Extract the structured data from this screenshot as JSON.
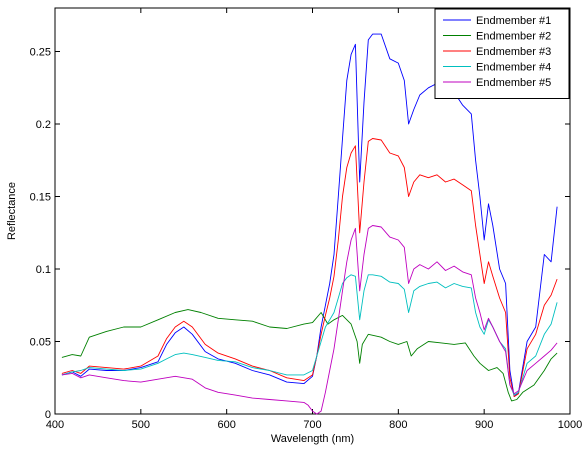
{
  "chart_data": {
    "type": "line",
    "title": "",
    "xlabel": "Wavelength (nm)",
    "ylabel": "Reflectance",
    "xlim": [
      400,
      1000
    ],
    "ylim": [
      0,
      0.28
    ],
    "xticks": [
      400,
      500,
      600,
      700,
      800,
      900,
      1000
    ],
    "xtick_labels": [
      "400",
      "500",
      "600",
      "700",
      "800",
      "900",
      "1000"
    ],
    "yticks": [
      0,
      0.05,
      0.1,
      0.15,
      0.2,
      0.25
    ],
    "ytick_labels": [
      "0",
      "0.05",
      "0.1",
      "0.15",
      "0.2",
      "0.25"
    ],
    "grid": false,
    "legend_position": "top-right",
    "series": [
      {
        "name": "Endmember #1",
        "color": "#0000ff",
        "points": [
          [
            408,
            0.027
          ],
          [
            420,
            0.029
          ],
          [
            430,
            0.026
          ],
          [
            440,
            0.031
          ],
          [
            460,
            0.03
          ],
          [
            480,
            0.03
          ],
          [
            500,
            0.032
          ],
          [
            520,
            0.036
          ],
          [
            530,
            0.048
          ],
          [
            540,
            0.056
          ],
          [
            550,
            0.06
          ],
          [
            560,
            0.055
          ],
          [
            575,
            0.043
          ],
          [
            590,
            0.038
          ],
          [
            610,
            0.035
          ],
          [
            630,
            0.03
          ],
          [
            650,
            0.027
          ],
          [
            670,
            0.022
          ],
          [
            690,
            0.021
          ],
          [
            700,
            0.026
          ],
          [
            705,
            0.04
          ],
          [
            710,
            0.06
          ],
          [
            715,
            0.075
          ],
          [
            720,
            0.09
          ],
          [
            725,
            0.11
          ],
          [
            730,
            0.15
          ],
          [
            735,
            0.19
          ],
          [
            740,
            0.23
          ],
          [
            745,
            0.248
          ],
          [
            750,
            0.255
          ],
          [
            755,
            0.16
          ],
          [
            760,
            0.215
          ],
          [
            765,
            0.258
          ],
          [
            770,
            0.262
          ],
          [
            780,
            0.262
          ],
          [
            790,
            0.245
          ],
          [
            800,
            0.242
          ],
          [
            807,
            0.23
          ],
          [
            812,
            0.2
          ],
          [
            818,
            0.21
          ],
          [
            825,
            0.22
          ],
          [
            835,
            0.225
          ],
          [
            845,
            0.228
          ],
          [
            855,
            0.218
          ],
          [
            865,
            0.222
          ],
          [
            875,
            0.213
          ],
          [
            885,
            0.207
          ],
          [
            890,
            0.175
          ],
          [
            895,
            0.15
          ],
          [
            900,
            0.12
          ],
          [
            905,
            0.145
          ],
          [
            910,
            0.13
          ],
          [
            918,
            0.1
          ],
          [
            925,
            0.09
          ],
          [
            930,
            0.03
          ],
          [
            935,
            0.012
          ],
          [
            940,
            0.015
          ],
          [
            950,
            0.05
          ],
          [
            960,
            0.06
          ],
          [
            970,
            0.11
          ],
          [
            978,
            0.105
          ],
          [
            985,
            0.143
          ]
        ]
      },
      {
        "name": "Endmember #2",
        "color": "#008000",
        "points": [
          [
            408,
            0.039
          ],
          [
            420,
            0.041
          ],
          [
            430,
            0.04
          ],
          [
            440,
            0.053
          ],
          [
            460,
            0.057
          ],
          [
            480,
            0.06
          ],
          [
            500,
            0.06
          ],
          [
            520,
            0.065
          ],
          [
            540,
            0.07
          ],
          [
            555,
            0.072
          ],
          [
            570,
            0.07
          ],
          [
            590,
            0.066
          ],
          [
            610,
            0.065
          ],
          [
            630,
            0.064
          ],
          [
            650,
            0.06
          ],
          [
            670,
            0.059
          ],
          [
            690,
            0.062
          ],
          [
            700,
            0.063
          ],
          [
            710,
            0.07
          ],
          [
            718,
            0.062
          ],
          [
            725,
            0.065
          ],
          [
            735,
            0.068
          ],
          [
            745,
            0.062
          ],
          [
            752,
            0.05
          ],
          [
            755,
            0.035
          ],
          [
            758,
            0.048
          ],
          [
            765,
            0.055
          ],
          [
            780,
            0.053
          ],
          [
            790,
            0.05
          ],
          [
            800,
            0.048
          ],
          [
            810,
            0.05
          ],
          [
            815,
            0.04
          ],
          [
            822,
            0.045
          ],
          [
            835,
            0.05
          ],
          [
            850,
            0.049
          ],
          [
            865,
            0.048
          ],
          [
            878,
            0.049
          ],
          [
            888,
            0.04
          ],
          [
            895,
            0.035
          ],
          [
            905,
            0.03
          ],
          [
            915,
            0.032
          ],
          [
            922,
            0.028
          ],
          [
            928,
            0.015
          ],
          [
            932,
            0.009
          ],
          [
            938,
            0.01
          ],
          [
            945,
            0.015
          ],
          [
            958,
            0.02
          ],
          [
            970,
            0.03
          ],
          [
            978,
            0.038
          ],
          [
            985,
            0.042
          ]
        ]
      },
      {
        "name": "Endmember #3",
        "color": "#ff0000",
        "points": [
          [
            408,
            0.028
          ],
          [
            420,
            0.03
          ],
          [
            430,
            0.028
          ],
          [
            440,
            0.033
          ],
          [
            460,
            0.032
          ],
          [
            480,
            0.031
          ],
          [
            500,
            0.033
          ],
          [
            520,
            0.04
          ],
          [
            530,
            0.052
          ],
          [
            540,
            0.06
          ],
          [
            550,
            0.064
          ],
          [
            560,
            0.06
          ],
          [
            575,
            0.048
          ],
          [
            590,
            0.042
          ],
          [
            610,
            0.038
          ],
          [
            630,
            0.033
          ],
          [
            650,
            0.03
          ],
          [
            670,
            0.025
          ],
          [
            690,
            0.023
          ],
          [
            700,
            0.027
          ],
          [
            705,
            0.04
          ],
          [
            710,
            0.055
          ],
          [
            715,
            0.068
          ],
          [
            720,
            0.08
          ],
          [
            725,
            0.095
          ],
          [
            730,
            0.12
          ],
          [
            735,
            0.15
          ],
          [
            740,
            0.17
          ],
          [
            745,
            0.18
          ],
          [
            750,
            0.185
          ],
          [
            755,
            0.125
          ],
          [
            760,
            0.16
          ],
          [
            765,
            0.188
          ],
          [
            770,
            0.19
          ],
          [
            780,
            0.189
          ],
          [
            790,
            0.18
          ],
          [
            800,
            0.178
          ],
          [
            807,
            0.17
          ],
          [
            812,
            0.15
          ],
          [
            818,
            0.16
          ],
          [
            825,
            0.165
          ],
          [
            835,
            0.163
          ],
          [
            845,
            0.165
          ],
          [
            855,
            0.16
          ],
          [
            865,
            0.162
          ],
          [
            875,
            0.158
          ],
          [
            885,
            0.154
          ],
          [
            890,
            0.13
          ],
          [
            895,
            0.11
          ],
          [
            900,
            0.09
          ],
          [
            905,
            0.105
          ],
          [
            910,
            0.095
          ],
          [
            918,
            0.08
          ],
          [
            925,
            0.07
          ],
          [
            930,
            0.025
          ],
          [
            935,
            0.012
          ],
          [
            940,
            0.014
          ],
          [
            950,
            0.045
          ],
          [
            960,
            0.055
          ],
          [
            970,
            0.075
          ],
          [
            978,
            0.082
          ],
          [
            985,
            0.093
          ]
        ]
      },
      {
        "name": "Endmember #4",
        "color": "#00bfbf",
        "points": [
          [
            408,
            0.027
          ],
          [
            420,
            0.029
          ],
          [
            430,
            0.03
          ],
          [
            440,
            0.032
          ],
          [
            460,
            0.031
          ],
          [
            480,
            0.03
          ],
          [
            500,
            0.031
          ],
          [
            520,
            0.035
          ],
          [
            530,
            0.038
          ],
          [
            540,
            0.041
          ],
          [
            550,
            0.042
          ],
          [
            560,
            0.041
          ],
          [
            575,
            0.039
          ],
          [
            590,
            0.037
          ],
          [
            610,
            0.036
          ],
          [
            630,
            0.032
          ],
          [
            650,
            0.03
          ],
          [
            670,
            0.027
          ],
          [
            690,
            0.027
          ],
          [
            700,
            0.03
          ],
          [
            705,
            0.04
          ],
          [
            710,
            0.05
          ],
          [
            715,
            0.06
          ],
          [
            720,
            0.065
          ],
          [
            725,
            0.07
          ],
          [
            730,
            0.08
          ],
          [
            735,
            0.09
          ],
          [
            740,
            0.094
          ],
          [
            745,
            0.096
          ],
          [
            750,
            0.095
          ],
          [
            755,
            0.065
          ],
          [
            760,
            0.085
          ],
          [
            765,
            0.096
          ],
          [
            770,
            0.096
          ],
          [
            780,
            0.095
          ],
          [
            790,
            0.091
          ],
          [
            800,
            0.09
          ],
          [
            807,
            0.086
          ],
          [
            812,
            0.07
          ],
          [
            818,
            0.085
          ],
          [
            825,
            0.088
          ],
          [
            835,
            0.09
          ],
          [
            845,
            0.091
          ],
          [
            855,
            0.087
          ],
          [
            865,
            0.09
          ],
          [
            875,
            0.088
          ],
          [
            885,
            0.087
          ],
          [
            890,
            0.07
          ],
          [
            895,
            0.06
          ],
          [
            900,
            0.055
          ],
          [
            905,
            0.065
          ],
          [
            910,
            0.06
          ],
          [
            918,
            0.05
          ],
          [
            925,
            0.045
          ],
          [
            930,
            0.02
          ],
          [
            935,
            0.013
          ],
          [
            940,
            0.015
          ],
          [
            950,
            0.035
          ],
          [
            960,
            0.04
          ],
          [
            970,
            0.055
          ],
          [
            978,
            0.062
          ],
          [
            985,
            0.077
          ]
        ]
      },
      {
        "name": "Endmember #5",
        "color": "#bf00bf",
        "points": [
          [
            408,
            0.027
          ],
          [
            420,
            0.028
          ],
          [
            430,
            0.025
          ],
          [
            440,
            0.027
          ],
          [
            460,
            0.025
          ],
          [
            480,
            0.023
          ],
          [
            500,
            0.022
          ],
          [
            520,
            0.024
          ],
          [
            540,
            0.026
          ],
          [
            560,
            0.024
          ],
          [
            575,
            0.018
          ],
          [
            590,
            0.015
          ],
          [
            610,
            0.013
          ],
          [
            630,
            0.011
          ],
          [
            650,
            0.01
          ],
          [
            670,
            0.009
          ],
          [
            690,
            0.008
          ],
          [
            695,
            0.006
          ],
          [
            700,
            0.002
          ],
          [
            705,
            0.0
          ],
          [
            710,
            0.002
          ],
          [
            715,
            0.015
          ],
          [
            720,
            0.03
          ],
          [
            725,
            0.045
          ],
          [
            730,
            0.065
          ],
          [
            735,
            0.085
          ],
          [
            740,
            0.105
          ],
          [
            745,
            0.12
          ],
          [
            750,
            0.128
          ],
          [
            755,
            0.085
          ],
          [
            760,
            0.11
          ],
          [
            765,
            0.128
          ],
          [
            770,
            0.13
          ],
          [
            780,
            0.129
          ],
          [
            790,
            0.122
          ],
          [
            800,
            0.12
          ],
          [
            807,
            0.115
          ],
          [
            812,
            0.09
          ],
          [
            818,
            0.1
          ],
          [
            825,
            0.103
          ],
          [
            835,
            0.1
          ],
          [
            845,
            0.105
          ],
          [
            855,
            0.099
          ],
          [
            865,
            0.102
          ],
          [
            875,
            0.098
          ],
          [
            885,
            0.096
          ],
          [
            890,
            0.08
          ],
          [
            895,
            0.07
          ],
          [
            900,
            0.058
          ],
          [
            905,
            0.066
          ],
          [
            910,
            0.06
          ],
          [
            918,
            0.05
          ],
          [
            925,
            0.043
          ],
          [
            930,
            0.02
          ],
          [
            935,
            0.014
          ],
          [
            940,
            0.016
          ],
          [
            950,
            0.03
          ],
          [
            960,
            0.035
          ],
          [
            970,
            0.04
          ],
          [
            978,
            0.044
          ],
          [
            985,
            0.049
          ]
        ]
      }
    ]
  }
}
